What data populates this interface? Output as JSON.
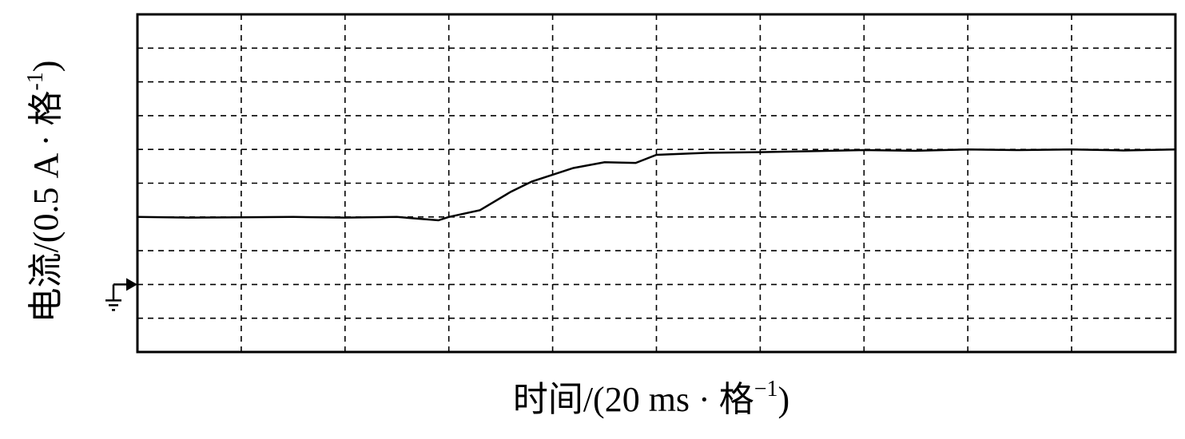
{
  "chart_data": {
    "type": "line",
    "xlabel_parts": [
      "时间/(20 ms · 格",
      "−1",
      ")"
    ],
    "ylabel_parts": [
      "电流/(0.5 A · 格",
      "-1",
      ")"
    ],
    "xlim": [
      0,
      10
    ],
    "ylim": [
      0,
      10
    ],
    "xticks": [
      1,
      2,
      3,
      4,
      5,
      6,
      7,
      8,
      9
    ],
    "yticks": [
      1,
      2,
      3,
      4,
      5,
      6,
      7,
      8,
      9
    ],
    "grid": true,
    "ground_level": 2,
    "series": [
      {
        "color": "#000000",
        "x": [
          0,
          0.5,
          1,
          1.5,
          2,
          2.5,
          2.9,
          3.0,
          3.3,
          3.6,
          3.8,
          4.0,
          4.2,
          4.5,
          4.8,
          5.0,
          5.5,
          6.0,
          6.5,
          7.0,
          7.5,
          8.0,
          8.5,
          9.0,
          9.5,
          10
        ],
        "values": [
          4.0,
          3.98,
          3.99,
          4.0,
          3.98,
          4.0,
          3.9,
          4.0,
          4.2,
          4.75,
          5.05,
          5.25,
          5.45,
          5.62,
          5.6,
          5.84,
          5.9,
          5.92,
          5.95,
          5.98,
          5.96,
          6.0,
          5.98,
          6.0,
          5.97,
          6.0
        ]
      }
    ]
  }
}
